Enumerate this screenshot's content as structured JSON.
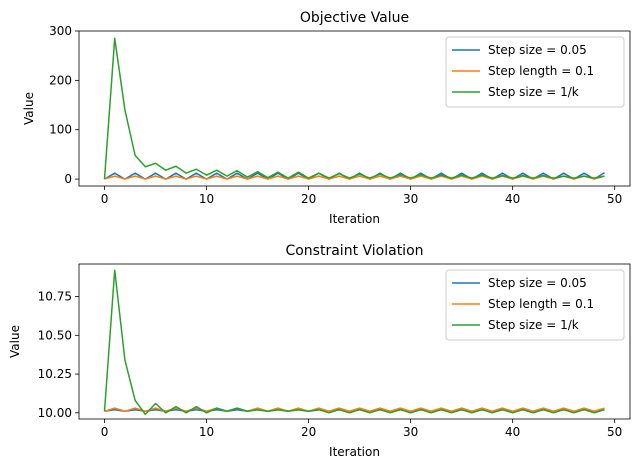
{
  "chart_data": [
    {
      "type": "line",
      "title": "Objective Value",
      "xlabel": "Iteration",
      "ylabel": "Value",
      "xlim": [
        -2.5,
        51.5
      ],
      "ylim": [
        -14,
        300
      ],
      "xticks": [
        0,
        10,
        20,
        30,
        40,
        50
      ],
      "yticks": [
        0,
        100,
        200,
        300
      ],
      "grid": false,
      "legend": "top-right",
      "x": [
        0,
        1,
        2,
        3,
        4,
        5,
        6,
        7,
        8,
        9,
        10,
        11,
        12,
        13,
        14,
        15,
        16,
        17,
        18,
        19,
        20,
        21,
        22,
        23,
        24,
        25,
        26,
        27,
        28,
        29,
        30,
        31,
        32,
        33,
        34,
        35,
        36,
        37,
        38,
        39,
        40,
        41,
        42,
        43,
        44,
        45,
        46,
        47,
        48,
        49
      ],
      "series": [
        {
          "name": "Step size = 0.05",
          "color": "#1f77b4",
          "values": [
            0,
            12,
            0,
            12,
            0,
            12,
            0,
            12,
            0,
            12,
            0,
            12,
            0,
            12,
            0,
            12,
            0,
            12,
            0,
            12,
            0,
            12,
            0,
            12,
            0,
            12,
            0,
            12,
            0,
            12,
            0,
            12,
            0,
            12,
            0,
            12,
            0,
            12,
            0,
            12,
            0,
            12,
            0,
            12,
            0,
            12,
            0,
            12,
            0,
            13
          ]
        },
        {
          "name": "Step length = 0.1",
          "color": "#ff7f0e",
          "values": [
            0,
            6,
            0,
            6,
            0,
            6,
            0,
            6,
            0,
            6,
            0,
            6,
            0,
            6,
            0,
            6,
            0,
            6,
            0,
            6,
            0,
            6,
            0,
            6,
            0,
            6,
            0,
            6,
            0,
            6,
            0,
            6,
            0,
            6,
            0,
            6,
            0,
            6,
            0,
            6,
            0,
            6,
            0,
            6,
            0,
            6,
            0,
            6,
            0,
            6
          ]
        },
        {
          "name": "Step size = 1/k",
          "color": "#2ca02c",
          "values": [
            0,
            285,
            140,
            48,
            25,
            32,
            18,
            26,
            12,
            20,
            8,
            18,
            6,
            17,
            4,
            15,
            3,
            14,
            2,
            14,
            2,
            12,
            2,
            11,
            2,
            10,
            2,
            10,
            2,
            9,
            2,
            9,
            2,
            8,
            2,
            8,
            2,
            8,
            2,
            7,
            2,
            7,
            2,
            7,
            2,
            6,
            2,
            6,
            2,
            6
          ]
        }
      ]
    },
    {
      "type": "line",
      "title": "Constraint Violation",
      "xlabel": "Iteration",
      "ylabel": "Value",
      "xlim": [
        -2.5,
        51.5
      ],
      "ylim": [
        9.96,
        10.96
      ],
      "xticks": [
        0,
        10,
        20,
        30,
        40,
        50
      ],
      "yticks": [
        10.0,
        10.25,
        10.5,
        10.75
      ],
      "grid": false,
      "legend": "top-right",
      "x": [
        0,
        1,
        2,
        3,
        4,
        5,
        6,
        7,
        8,
        9,
        10,
        11,
        12,
        13,
        14,
        15,
        16,
        17,
        18,
        19,
        20,
        21,
        22,
        23,
        24,
        25,
        26,
        27,
        28,
        29,
        30,
        31,
        32,
        33,
        34,
        35,
        36,
        37,
        38,
        39,
        40,
        41,
        42,
        43,
        44,
        45,
        46,
        47,
        48,
        49
      ],
      "series": [
        {
          "name": "Step size = 0.05",
          "color": "#1f77b4",
          "values": [
            10.01,
            10.02,
            10.01,
            10.02,
            10.01,
            10.02,
            10.01,
            10.02,
            10.01,
            10.02,
            10.01,
            10.02,
            10.01,
            10.02,
            10.01,
            10.02,
            10.01,
            10.02,
            10.01,
            10.02,
            10.01,
            10.02,
            10.01,
            10.02,
            10.01,
            10.02,
            10.01,
            10.02,
            10.01,
            10.02,
            10.01,
            10.02,
            10.01,
            10.02,
            10.01,
            10.02,
            10.01,
            10.02,
            10.01,
            10.02,
            10.01,
            10.02,
            10.01,
            10.02,
            10.01,
            10.02,
            10.01,
            10.02,
            10.01,
            10.02
          ]
        },
        {
          "name": "Step length = 0.1",
          "color": "#ff7f0e",
          "values": [
            10.01,
            10.03,
            10.01,
            10.03,
            10.01,
            10.03,
            10.01,
            10.03,
            10.01,
            10.03,
            10.01,
            10.03,
            10.01,
            10.03,
            10.01,
            10.03,
            10.01,
            10.03,
            10.01,
            10.03,
            10.01,
            10.03,
            10.01,
            10.03,
            10.01,
            10.03,
            10.01,
            10.03,
            10.01,
            10.03,
            10.01,
            10.03,
            10.01,
            10.03,
            10.01,
            10.03,
            10.01,
            10.03,
            10.01,
            10.03,
            10.01,
            10.03,
            10.01,
            10.03,
            10.01,
            10.03,
            10.01,
            10.03,
            10.01,
            10.03
          ]
        },
        {
          "name": "Step size = 1/k",
          "color": "#2ca02c",
          "values": [
            10.01,
            10.92,
            10.34,
            10.08,
            9.99,
            10.06,
            10.0,
            10.04,
            10.0,
            10.04,
            10.0,
            10.03,
            10.01,
            10.03,
            10.01,
            10.02,
            10.01,
            10.02,
            10.01,
            10.02,
            10.01,
            10.02,
            10.0,
            10.02,
            10.0,
            10.02,
            10.0,
            10.02,
            10.0,
            10.02,
            10.0,
            10.02,
            10.0,
            10.02,
            10.0,
            10.02,
            10.0,
            10.02,
            10.0,
            10.02,
            10.0,
            10.02,
            10.0,
            10.02,
            10.0,
            10.02,
            10.0,
            10.02,
            10.0,
            10.02
          ]
        }
      ]
    }
  ]
}
